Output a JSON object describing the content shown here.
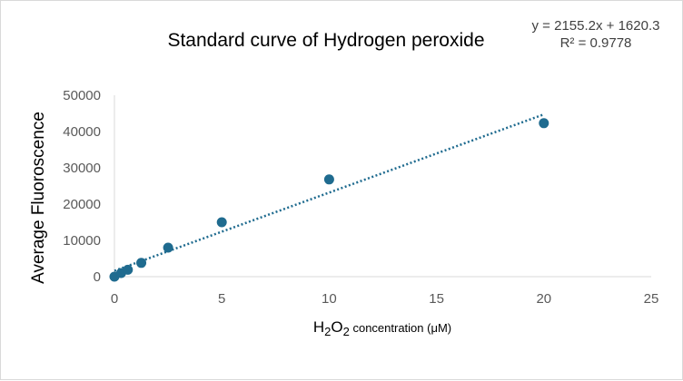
{
  "chart_data": {
    "type": "scatter",
    "title": "Standard curve of Hydrogen peroxide",
    "xlabel": {
      "parts": [
        {
          "text": "H",
          "style": "normal"
        },
        {
          "text": "2",
          "style": "sub"
        },
        {
          "text": "O",
          "style": "normal"
        },
        {
          "text": "2",
          "style": "sub"
        },
        {
          "text": " concentration (μM)",
          "style": "small"
        }
      ]
    },
    "ylabel": "Average Fluoroscence",
    "xlim": [
      0,
      25
    ],
    "ylim": [
      0,
      50000
    ],
    "xticks": [
      0,
      5,
      10,
      15,
      20,
      25
    ],
    "yticks": [
      0,
      10000,
      20000,
      30000,
      40000,
      50000
    ],
    "legend": "none",
    "grid": false,
    "series": [
      {
        "color": "#1f6b8f",
        "x": [
          0,
          0.3125,
          0.625,
          1.25,
          2.5,
          5,
          10,
          20
        ],
        "y": [
          0,
          1000,
          1900,
          3800,
          8000,
          15000,
          26800,
          42300
        ]
      }
    ],
    "trendline": {
      "type": "linear",
      "slope": 2155.2,
      "intercept": 1620.3,
      "x_range": [
        0,
        20
      ],
      "style": "dotted",
      "color": "#1f6b8f",
      "equation_label": "y = 2155.2x + 1620.3",
      "r2_label": "R² = 0.9778"
    },
    "colors": {
      "axis": "#d9d9d9",
      "tick_text": "#595959",
      "marker": "#1f6b8f"
    }
  }
}
